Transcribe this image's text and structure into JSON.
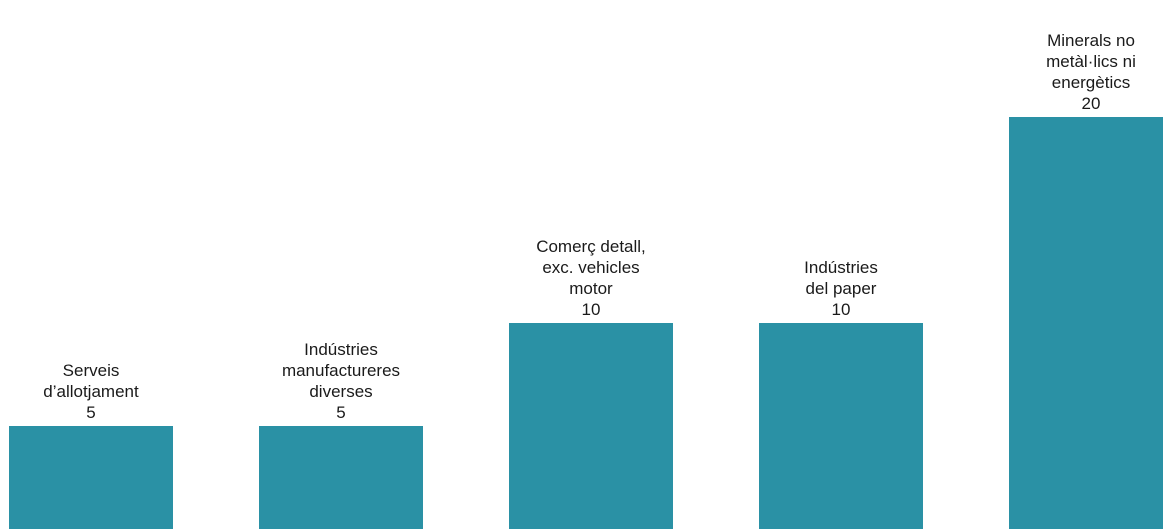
{
  "chart_data": {
    "type": "bar",
    "categories": [
      [
        "Serveis",
        "d’allotjament"
      ],
      [
        "Indústries",
        "manufactureres",
        "diverses"
      ],
      [
        "Comerç detall,",
        "exc. vehicles",
        "motor"
      ],
      [
        "Indústries",
        "del paper"
      ],
      [
        "Minerals no",
        "metàl·lics ni",
        "energètics"
      ]
    ],
    "values": [
      5,
      5,
      10,
      10,
      20
    ],
    "value_labels": [
      "5",
      "5",
      "10",
      "10",
      "20"
    ],
    "ylim": [
      0,
      20
    ],
    "bar_color": "#2a91a5",
    "grid": false,
    "legend": "none",
    "axes_visible": false
  }
}
